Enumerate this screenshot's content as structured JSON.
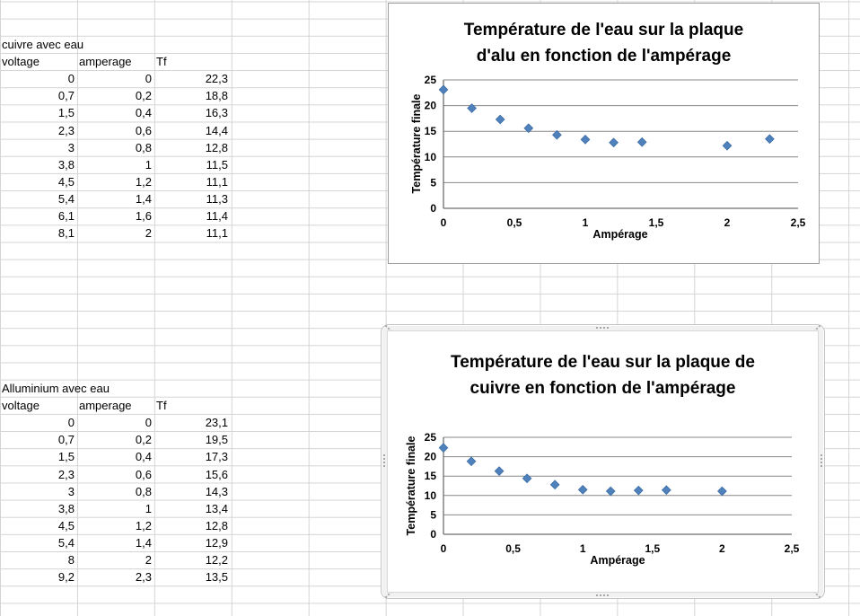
{
  "sheet": {
    "tables": [
      {
        "title": "cuivre avec eau",
        "columns": [
          "voltage",
          "amperage",
          "Tf"
        ],
        "rows": [
          [
            "0",
            "0",
            "22,3"
          ],
          [
            "0,7",
            "0,2",
            "18,8"
          ],
          [
            "1,5",
            "0,4",
            "16,3"
          ],
          [
            "2,3",
            "0,6",
            "14,4"
          ],
          [
            "3",
            "0,8",
            "12,8"
          ],
          [
            "3,8",
            "1",
            "11,5"
          ],
          [
            "4,5",
            "1,2",
            "11,1"
          ],
          [
            "5,4",
            "1,4",
            "11,3"
          ],
          [
            "6,1",
            "1,6",
            "11,4"
          ],
          [
            "8,1",
            "2",
            "11,1"
          ]
        ]
      },
      {
        "title": "Alluminium avec eau",
        "columns": [
          "voltage",
          "amperage",
          "Tf"
        ],
        "rows": [
          [
            "0",
            "0",
            "23,1"
          ],
          [
            "0,7",
            "0,2",
            "19,5"
          ],
          [
            "1,5",
            "0,4",
            "17,3"
          ],
          [
            "2,3",
            "0,6",
            "15,6"
          ],
          [
            "3",
            "0,8",
            "14,3"
          ],
          [
            "3,8",
            "1",
            "13,4"
          ],
          [
            "4,5",
            "1,2",
            "12,8"
          ],
          [
            "5,4",
            "1,4",
            "12,9"
          ],
          [
            "8",
            "2",
            "12,2"
          ],
          [
            "9,2",
            "2,3",
            "13,5"
          ]
        ]
      }
    ]
  },
  "chart_data": [
    {
      "type": "scatter",
      "title": "Température de l'eau sur la plaque d'alu en fonction de l'ampérage",
      "xlabel": "Ampérage",
      "ylabel": "Température finale",
      "xlim": [
        0,
        2.5
      ],
      "ylim": [
        0,
        25
      ],
      "x_tick_values": [
        0,
        0.5,
        1,
        1.5,
        2,
        2.5
      ],
      "x_tick_labels": [
        "0",
        "0,5",
        "1",
        "1,5",
        "2",
        "2,5"
      ],
      "y_tick_values": [
        0,
        5,
        10,
        15,
        20,
        25
      ],
      "y_tick_labels": [
        "0",
        "5",
        "10",
        "15",
        "20",
        "25"
      ],
      "x": [
        0,
        0.2,
        0.4,
        0.6,
        0.8,
        1,
        1.2,
        1.4,
        2,
        2.3
      ],
      "y": [
        23.1,
        19.5,
        17.3,
        15.6,
        14.3,
        13.4,
        12.8,
        12.9,
        12.2,
        13.5
      ],
      "grid": true,
      "legend": "none",
      "marker": "diamond",
      "selected": false
    },
    {
      "type": "scatter",
      "title": "Température de l'eau sur la plaque de cuivre en fonction de l'ampérage",
      "xlabel": "Ampérage",
      "ylabel": "Température finale",
      "xlim": [
        0,
        2.5
      ],
      "ylim": [
        0,
        25
      ],
      "x_tick_values": [
        0,
        0.5,
        1,
        1.5,
        2,
        2.5
      ],
      "x_tick_labels": [
        "0",
        "0,5",
        "1",
        "1,5",
        "2",
        "2,5"
      ],
      "y_tick_values": [
        0,
        5,
        10,
        15,
        20,
        25
      ],
      "y_tick_labels": [
        "0",
        "5",
        "10",
        "15",
        "20",
        "25"
      ],
      "x": [
        0,
        0.2,
        0.4,
        0.6,
        0.8,
        1,
        1.2,
        1.4,
        1.6,
        2
      ],
      "y": [
        22.3,
        18.8,
        16.3,
        14.4,
        12.8,
        11.5,
        11.1,
        11.3,
        11.4,
        11.1
      ],
      "grid": true,
      "legend": "none",
      "marker": "diamond",
      "selected": true
    }
  ],
  "colors": {
    "marker": "#4F81BD",
    "marker_edge": "#3D6DA3",
    "plot_grid": "#878787",
    "axis": "#6F6F6F",
    "sheet_grid": "#D4D4D4",
    "chart_border": "#9D9D9D",
    "selection_frame": "#C4C4C4",
    "text": "#000000"
  }
}
